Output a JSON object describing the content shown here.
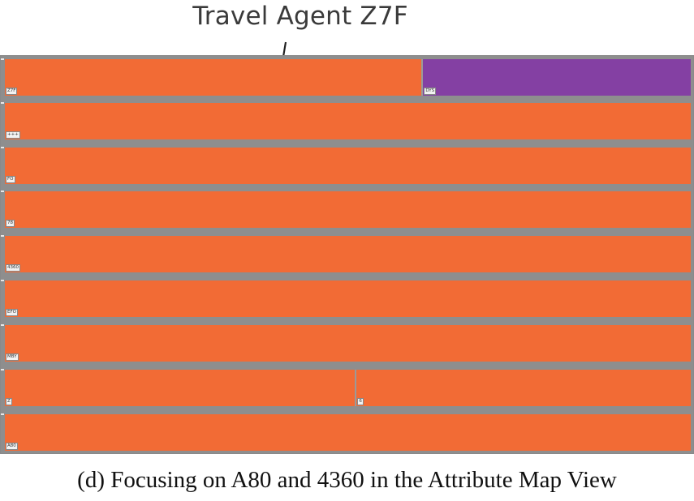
{
  "annotation": {
    "title": "Travel Agent Z7F"
  },
  "map_view": {
    "rows": [
      {
        "cells": [
          {
            "label": "Z7F",
            "fraction": 0.6075,
            "color": "#f26b35"
          },
          {
            "label": "DYS",
            "fraction": 0.3925,
            "color": "#8440a3"
          }
        ]
      },
      {
        "cells": [
          {
            "label": "+++",
            "fraction": 1.0,
            "color": "#f26b35"
          }
        ]
      },
      {
        "cells": [
          {
            "label": "FO",
            "fraction": 1.0,
            "color": "#f26b35"
          }
        ]
      },
      {
        "cells": [
          {
            "label": "78",
            "fraction": 1.0,
            "color": "#f26b35"
          }
        ]
      },
      {
        "cells": [
          {
            "label": "4360",
            "fraction": 1.0,
            "color": "#f26b35"
          }
        ]
      },
      {
        "cells": [
          {
            "label": "EFO",
            "fraction": 1.0,
            "color": "#f26b35"
          }
        ]
      },
      {
        "cells": [
          {
            "label": "MBY",
            "fraction": 1.0,
            "color": "#f26b35"
          }
        ]
      },
      {
        "cells": [
          {
            "label": "Z",
            "fraction": 0.5105,
            "color": "#f26b35"
          },
          {
            "label": "6",
            "fraction": 0.4895,
            "color": "#f26b35"
          }
        ]
      },
      {
        "cells": [
          {
            "label": "A80",
            "fraction": 1.0,
            "color": "#f26b35"
          }
        ]
      }
    ]
  },
  "caption": "(d)  Focusing on A80 and 4360 in the Attribute Map View"
}
